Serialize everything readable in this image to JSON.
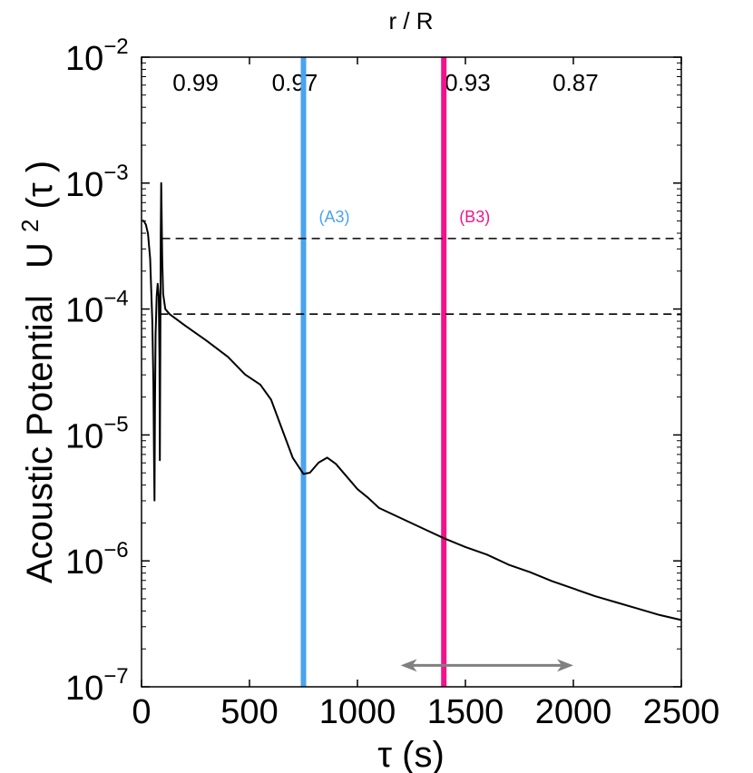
{
  "chart_data": {
    "type": "line",
    "title": "",
    "top_axis_label": "r / R",
    "top_ticks": [
      {
        "label": "0.99",
        "x": 250
      },
      {
        "label": "0.97",
        "x": 710
      },
      {
        "label": "0.93",
        "x": 1510
      },
      {
        "label": "0.87",
        "x": 2010
      }
    ],
    "xlabel": "τ (s)",
    "ylabel": "Acoustic Potential   U²(τ)",
    "ylabel_prefix": "Acoustic Potential",
    "ylabel_symbol": "U",
    "ylabel_sup": "2",
    "ylabel_arg": "(τ )",
    "xlim": [
      0,
      2500
    ],
    "ylim_log10": [
      -7,
      -2
    ],
    "y_scale": "log",
    "x_ticks": [
      0,
      500,
      1000,
      1500,
      2000,
      2500
    ],
    "x_tick_labels": [
      "0",
      "500",
      "1000",
      "1500",
      "2000",
      "2500"
    ],
    "y_ticks_exp": [
      -7,
      -6,
      -5,
      -4,
      -3,
      -2
    ],
    "y_tick_base": "10",
    "y_tick_exps": [
      "−7",
      "−6",
      "−5",
      "−4",
      "−3",
      "−2"
    ],
    "grid": false,
    "legend": "none",
    "series": [
      {
        "name": "U^2(tau)",
        "color": "#000000",
        "points": [
          [
            0,
            -3.3
          ],
          [
            10,
            -3.3
          ],
          [
            20,
            -3.33
          ],
          [
            30,
            -3.4
          ],
          [
            40,
            -3.6
          ],
          [
            50,
            -4.1
          ],
          [
            55,
            -4.6
          ],
          [
            58,
            -5.2
          ],
          [
            60,
            -5.52
          ],
          [
            62,
            -4.8
          ],
          [
            65,
            -4.2
          ],
          [
            70,
            -3.9
          ],
          [
            75,
            -3.8
          ],
          [
            80,
            -3.9
          ],
          [
            83,
            -4.4
          ],
          [
            85,
            -5.2
          ],
          [
            87,
            -4.3
          ],
          [
            89,
            -3.4
          ],
          [
            91,
            -3.0
          ],
          [
            93,
            -3.2
          ],
          [
            96,
            -3.6
          ],
          [
            100,
            -3.88
          ],
          [
            110,
            -4.0
          ],
          [
            130,
            -4.04
          ],
          [
            200,
            -4.13
          ],
          [
            300,
            -4.25
          ],
          [
            400,
            -4.38
          ],
          [
            480,
            -4.52
          ],
          [
            550,
            -4.6
          ],
          [
            600,
            -4.72
          ],
          [
            650,
            -4.95
          ],
          [
            700,
            -5.18
          ],
          [
            750,
            -5.31
          ],
          [
            780,
            -5.3
          ],
          [
            820,
            -5.22
          ],
          [
            860,
            -5.18
          ],
          [
            900,
            -5.23
          ],
          [
            950,
            -5.33
          ],
          [
            1000,
            -5.43
          ],
          [
            1050,
            -5.5
          ],
          [
            1100,
            -5.58
          ],
          [
            1200,
            -5.66
          ],
          [
            1300,
            -5.74
          ],
          [
            1400,
            -5.82
          ],
          [
            1500,
            -5.89
          ],
          [
            1600,
            -5.95
          ],
          [
            1700,
            -6.03
          ],
          [
            1800,
            -6.09
          ],
          [
            1900,
            -6.16
          ],
          [
            2000,
            -6.22
          ],
          [
            2100,
            -6.28
          ],
          [
            2200,
            -6.33
          ],
          [
            2300,
            -6.38
          ],
          [
            2400,
            -6.43
          ],
          [
            2500,
            -6.47
          ]
        ]
      }
    ],
    "reference_lines": [
      {
        "type": "horizontal",
        "style": "dashed",
        "y_log10": -3.44,
        "x_start": 95
      },
      {
        "type": "horizontal",
        "style": "dashed",
        "y_log10": -4.04,
        "x_start": 85
      }
    ],
    "markers": [
      {
        "x": 750,
        "label": "(A3)",
        "color": "#4aa3ed"
      },
      {
        "x": 1400,
        "label": "(B3)",
        "color": "#f0148a"
      }
    ],
    "arrow": {
      "from_x": 1200,
      "to_x": 2000,
      "y_log10": -6.83,
      "direction": "both",
      "color": "#808080"
    }
  }
}
